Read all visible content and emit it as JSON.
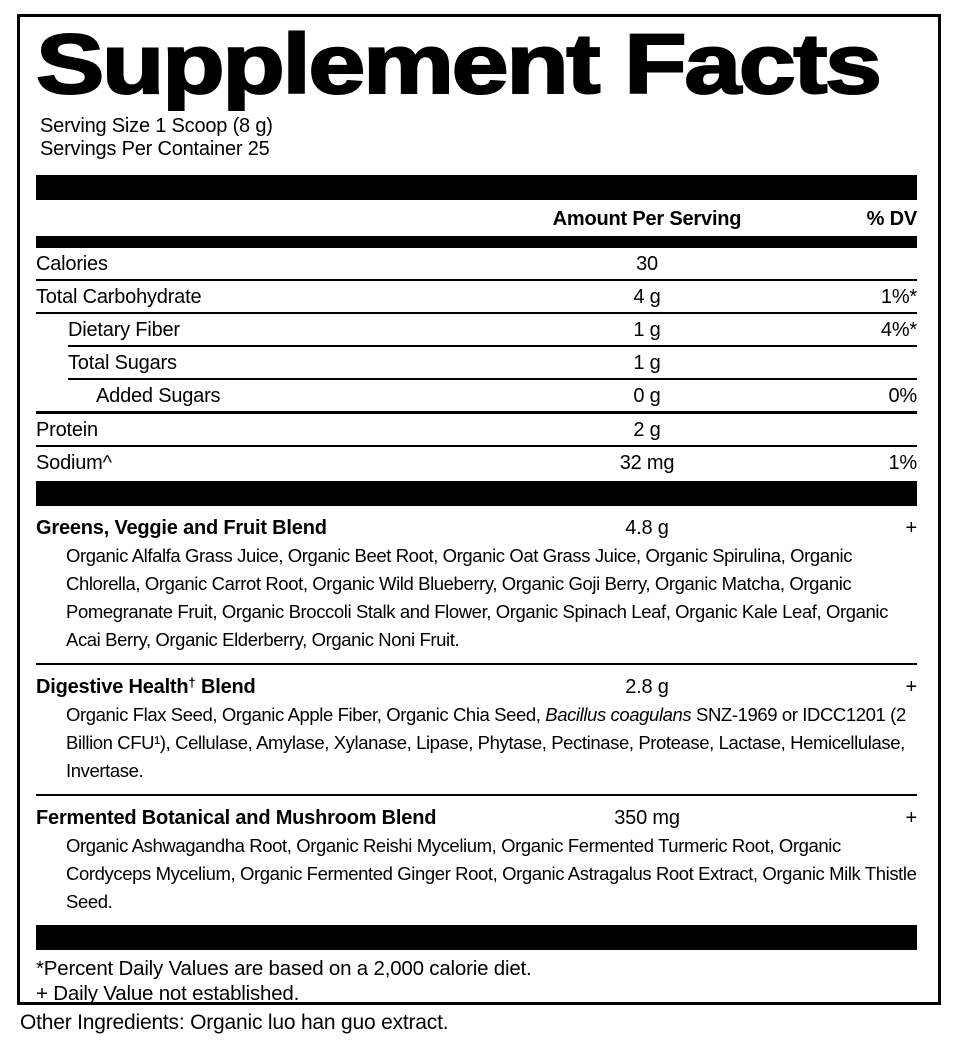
{
  "title": "Supplement Facts",
  "serving": {
    "size_label": "Serving Size 1 Scoop (8 g)",
    "container_label": "Servings Per Container 25"
  },
  "table": {
    "amount_header": "Amount Per Serving",
    "dv_header": "% DV",
    "rows": [
      {
        "name": "Calories",
        "amount": "30",
        "dv": ""
      },
      {
        "name": "Total Carbohydrate",
        "amount": "4 g",
        "dv": "1%*"
      },
      {
        "name": "Dietary Fiber",
        "amount": "1 g",
        "dv": "4%*"
      },
      {
        "name": "Total Sugars",
        "amount": "1 g",
        "dv": ""
      },
      {
        "name": "Added Sugars",
        "amount": "0 g",
        "dv": "0%"
      },
      {
        "name": "Protein",
        "amount": "2 g",
        "dv": ""
      },
      {
        "name": "Sodium^",
        "amount": "32 mg",
        "dv": "1%"
      }
    ]
  },
  "blends": [
    {
      "name_pre": "Greens, Veggie and Fruit Blend",
      "name_sup": "",
      "name_post": "",
      "amount": "4.8 g",
      "dv": "+",
      "ingredients_pre": "Organic Alfalfa Grass Juice, Organic Beet Root, Organic Oat Grass Juice, Organic Spirulina, Organic Chlorella, Organic Carrot Root, Organic Wild Blueberry, Organic Goji Berry, Organic Matcha, Organic Pomegranate Fruit, Organic Broccoli Stalk and Flower, Organic Spinach Leaf, Organic Kale Leaf, Organic Acai Berry, Organic Elderberry, Organic Noni Fruit.",
      "ingredients_italic": "",
      "ingredients_post": ""
    },
    {
      "name_pre": "Digestive Health",
      "name_sup": "†",
      "name_post": " Blend",
      "amount": "2.8 g",
      "dv": "+",
      "ingredients_pre": "Organic Flax Seed, Organic Apple Fiber, Organic Chia Seed, ",
      "ingredients_italic": "Bacillus coagulans",
      "ingredients_post": " SNZ-1969 or IDCC1201 (2 Billion CFU¹), Cellulase, Amylase, Xylanase, Lipase, Phytase, Pectinase, Protease, Lactase, Hemicellulase, Invertase."
    },
    {
      "name_pre": "Fermented Botanical and Mushroom Blend",
      "name_sup": "",
      "name_post": "",
      "amount": "350 mg",
      "dv": "+",
      "ingredients_pre": "Organic Ashwagandha Root, Organic Reishi Mycelium, Organic Fermented Turmeric Root, Organic Cordyceps Mycelium, Organic Fermented Ginger Root, Organic Astragalus Root Extract, Organic Milk Thistle Seed.",
      "ingredients_italic": "",
      "ingredients_post": ""
    }
  ],
  "footnotes": {
    "dv_note": "*Percent Daily Values are based on a 2,000 calorie diet.",
    "plus_note": "+ Daily Value not established."
  },
  "other_ingredients": "Other Ingredients: Organic luo han guo extract.",
  "colors": {
    "ink": "#000000",
    "background": "#ffffff"
  }
}
